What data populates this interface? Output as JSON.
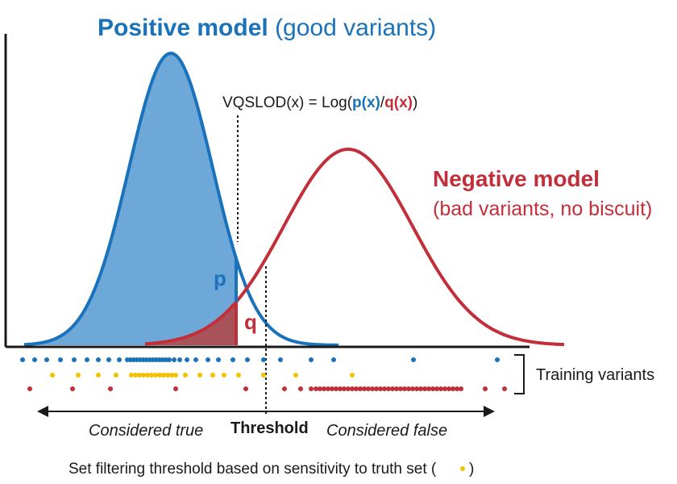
{
  "colors": {
    "positive": "#1a72bb",
    "positive_fill": "#6ea8d8",
    "negative": "#c22f3a",
    "negative_fill": "#a8535a",
    "truth": "#f2c200",
    "axis": "#1a1a1a"
  },
  "positive_model": {
    "title_bold": "Positive model",
    "title_rest": " (good variants)"
  },
  "negative_model": {
    "title_bold": "Negative model",
    "subtitle": "(bad variants, no biscuit)"
  },
  "formula": {
    "prefix": "VQSLOD(x) = Log(",
    "p": "p(x)",
    "slash": "/",
    "q": "q(x)",
    "suffix": ")"
  },
  "labels": {
    "p": "p",
    "q": "q",
    "threshold": "Threshold",
    "considered_true": "Considered true",
    "considered_false": "Considered false",
    "training_variants": "Training variants",
    "footer": "Set filtering threshold based on sensitivity to truth set (",
    "footer_end": ")"
  },
  "variant_dots": {
    "blue": [
      28,
      43,
      58,
      75,
      92,
      108,
      122,
      135,
      148,
      158,
      162,
      166,
      170,
      174,
      178,
      182,
      186,
      190,
      194,
      198,
      202,
      206,
      210,
      216,
      223,
      232,
      243,
      258,
      271,
      289,
      307,
      327,
      348,
      386,
      414,
      513,
      617
    ],
    "yellow": [
      65,
      97,
      122,
      144,
      163,
      168,
      173,
      178,
      183,
      188,
      193,
      198,
      203,
      208,
      213,
      218,
      230,
      248,
      264,
      278,
      296,
      327,
      367,
      437
    ],
    "red": [
      37,
      90,
      137,
      218,
      305,
      353,
      373,
      386,
      392,
      397,
      402,
      407,
      412,
      417,
      422,
      427,
      432,
      437,
      442,
      447,
      452,
      457,
      462,
      467,
      472,
      477,
      482,
      487,
      492,
      497,
      502,
      507,
      512,
      517,
      522,
      527,
      532,
      537,
      542,
      547,
      552,
      557,
      562,
      567,
      572,
      602,
      626
    ]
  }
}
